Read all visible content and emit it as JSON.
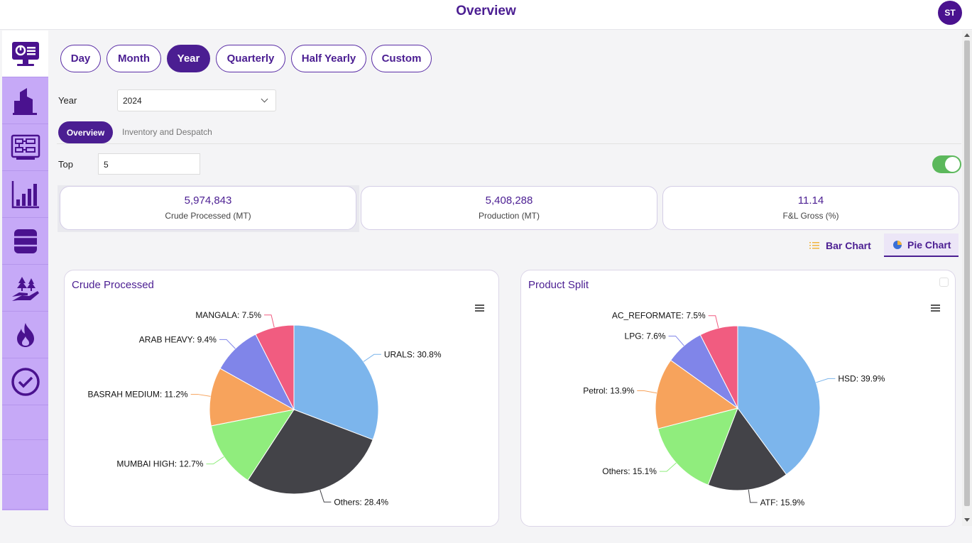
{
  "header": {
    "title": "Overview",
    "avatar_initials": "ST"
  },
  "sidebar": {
    "items": [
      "dashboard-monitor-icon",
      "building-icon",
      "flow-diagram-icon",
      "bar-chart-icon",
      "barrel-icon",
      "hand-plant-icon",
      "flame-icon",
      "check-circle-icon"
    ],
    "accent": "#c6a9f7"
  },
  "period_tabs": [
    "Day",
    "Month",
    "Year",
    "Quarterly",
    "Half Yearly",
    "Custom"
  ],
  "selected_period": "Year",
  "filters": {
    "year_label": "Year",
    "year_value": "2024",
    "top_label": "Top",
    "top_value": "5"
  },
  "view_tabs": {
    "active": "Overview",
    "other": "Inventory and Despatch"
  },
  "kpis": [
    {
      "value": "5,974,843",
      "label": "Crude Processed (MT)"
    },
    {
      "value": "5,408,288",
      "label": "Production (MT)"
    },
    {
      "value": "11.14",
      "label": "F&L Gross (%)"
    }
  ],
  "chart_toggle": {
    "bar": "Bar Chart",
    "pie": "Pie Chart"
  },
  "colors": {
    "primary": "#4b1e92",
    "toggle_on": "#5cb85c"
  },
  "chart_data": [
    {
      "type": "pie",
      "title": "Crude Processed",
      "slices": [
        {
          "name": "URALS",
          "value": 30.8,
          "label": "URALS: 30.8%",
          "color": "#7cb5ec"
        },
        {
          "name": "Others",
          "value": 28.4,
          "label": "Others: 28.4%",
          "color": "#434348"
        },
        {
          "name": "MUMBAI HIGH",
          "value": 12.7,
          "label": "MUMBAI HIGH: 12.7%",
          "color": "#90ed7d"
        },
        {
          "name": "BASRAH MEDIUM",
          "value": 11.2,
          "label": "BASRAH MEDIUM: 11.2%",
          "color": "#f7a35c"
        },
        {
          "name": "ARAB HEAVY",
          "value": 9.4,
          "label": "ARAB HEAVY: 9.4%",
          "color": "#8085e9"
        },
        {
          "name": "MANGALA",
          "value": 7.5,
          "label": "MANGALA: 7.5%",
          "color": "#f15c80"
        }
      ]
    },
    {
      "type": "pie",
      "title": "Product Split",
      "slices": [
        {
          "name": "HSD",
          "value": 39.9,
          "label": "HSD: 39.9%",
          "color": "#7cb5ec"
        },
        {
          "name": "ATF",
          "value": 15.9,
          "label": "ATF: 15.9%",
          "color": "#434348"
        },
        {
          "name": "Others",
          "value": 15.1,
          "label": "Others: 15.1%",
          "color": "#90ed7d"
        },
        {
          "name": "Petrol",
          "value": 13.9,
          "label": "Petrol: 13.9%",
          "color": "#f7a35c"
        },
        {
          "name": "LPG",
          "value": 7.6,
          "label": "LPG: 7.6%",
          "color": "#8085e9"
        },
        {
          "name": "AC_REFORMATE",
          "value": 7.5,
          "label": "AC_REFORMATE: 7.5%",
          "color": "#f15c80"
        }
      ]
    }
  ]
}
